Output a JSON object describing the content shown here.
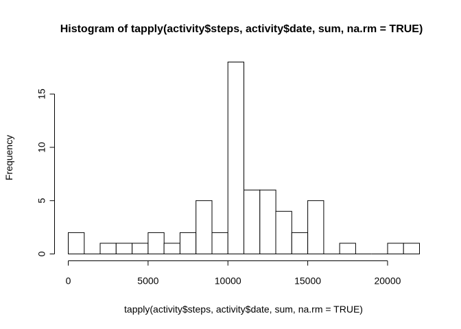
{
  "chart_data": {
    "type": "bar",
    "title": "Histogram of tapply(activity$steps, activity$date, sum, na.rm = TRUE)",
    "xlabel": "tapply(activity$steps, activity$date, sum, na.rm = TRUE)",
    "ylabel": "Frequency",
    "bin_width": 1000,
    "bin_starts": [
      0,
      1000,
      2000,
      3000,
      4000,
      5000,
      6000,
      7000,
      8000,
      9000,
      10000,
      11000,
      12000,
      13000,
      14000,
      15000,
      16000,
      17000,
      18000,
      19000,
      20000,
      21000
    ],
    "values": [
      2,
      0,
      1,
      1,
      1,
      2,
      1,
      2,
      5,
      2,
      18,
      6,
      6,
      4,
      2,
      5,
      0,
      1,
      0,
      0,
      1,
      1
    ],
    "xlim": [
      0,
      22000
    ],
    "ylim": [
      0,
      18
    ],
    "x_ticks": [
      0,
      5000,
      10000,
      15000,
      20000
    ],
    "x_tick_labels": [
      "0",
      "5000",
      "10000",
      "15000",
      "20000"
    ],
    "y_ticks": [
      0,
      5,
      10,
      15
    ],
    "y_tick_labels": [
      "0",
      "5",
      "10",
      "15"
    ],
    "grid": false,
    "legend": "none"
  }
}
